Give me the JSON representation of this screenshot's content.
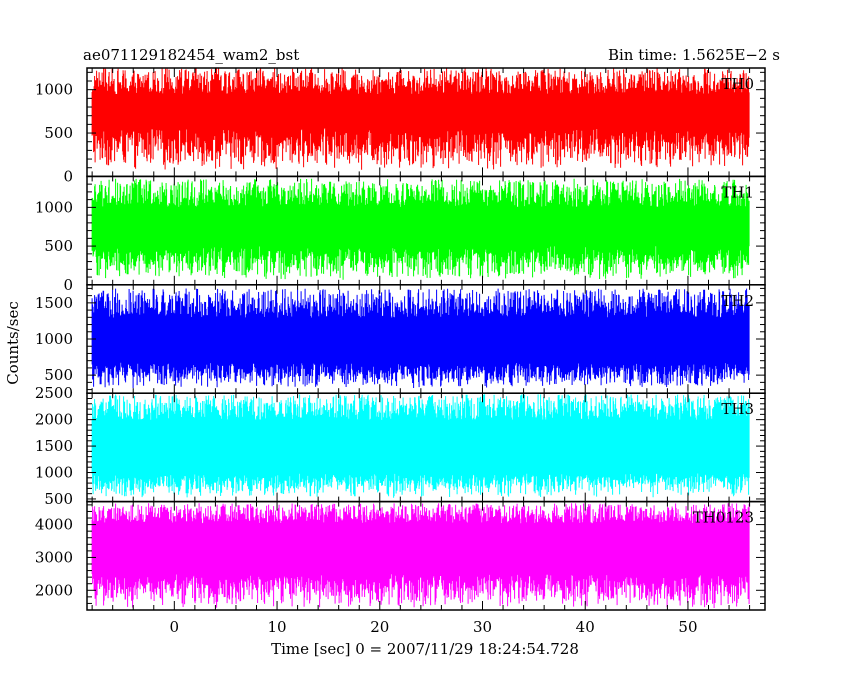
{
  "header": {
    "title": "ae071129182454_wam2_bst",
    "bin_time": "Bin time: 1.5625E−2 s"
  },
  "chart_data": {
    "type": "line",
    "title": "ae071129182454_wam2_bst",
    "subtitle": "Bin time: 1.5625E−2 s",
    "xlabel": "Time [sec] 0 = 2007/11/29 18:24:54.728",
    "ylabel": "Counts/sec",
    "xlim": [
      -8.5,
      57.5
    ],
    "data_xrange": [
      -8.0,
      56.0
    ],
    "x_ticks": [
      0,
      10,
      20,
      30,
      40,
      50
    ],
    "grid": false,
    "panels": [
      {
        "name": "TH0",
        "color": "#ff0000",
        "ylim": [
          0,
          1250
        ],
        "y_ticks": [
          0,
          500,
          1000
        ],
        "base_min": 70,
        "base_max": 560,
        "peak_max": 1250,
        "median": 580
      },
      {
        "name": "TH1",
        "color": "#00ff00",
        "ylim": [
          0,
          1400
        ],
        "y_ticks": [
          0,
          500,
          1000
        ],
        "base_min": 60,
        "base_max": 500,
        "peak_max": 1370,
        "median": 560
      },
      {
        "name": "TH2",
        "color": "#0000ff",
        "ylim": [
          250,
          1750
        ],
        "y_ticks": [
          500,
          1000,
          1500
        ],
        "base_min": 320,
        "base_max": 680,
        "peak_max": 1700,
        "median": 800
      },
      {
        "name": "TH3",
        "color": "#00ffff",
        "ylim": [
          450,
          2500
        ],
        "y_ticks": [
          500,
          1000,
          1500,
          2000,
          2500
        ],
        "base_min": 520,
        "base_max": 1000,
        "peak_max": 2480,
        "median": 1400
      },
      {
        "name": "TH0123",
        "color": "#ff00ff",
        "ylim": [
          1400,
          4700
        ],
        "y_ticks": [
          2000,
          3000,
          4000
        ],
        "base_min": 1450,
        "base_max": 2500,
        "peak_max": 4650,
        "median": 3300
      }
    ]
  }
}
